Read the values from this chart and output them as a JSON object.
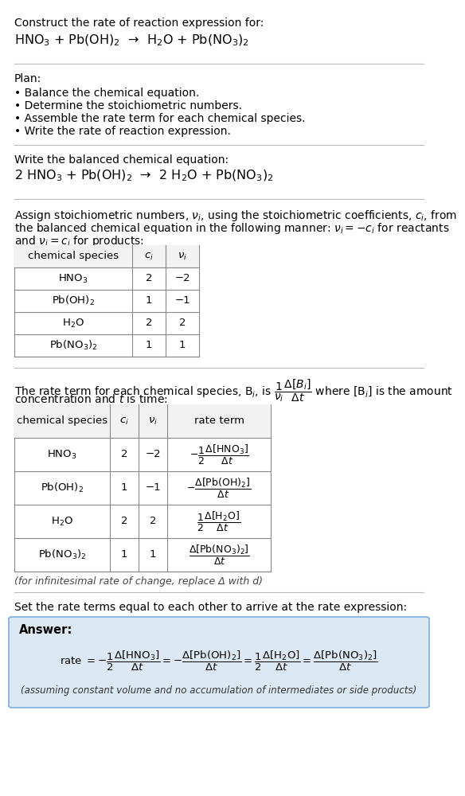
{
  "bg_color": "#ffffff",
  "text_color": "#000000",
  "answer_bg": "#dce9f5",
  "title_line1": "Construct the rate of reaction expression for:",
  "title_line2": "HNO$_3$ + Pb(OH)$_2$  →  H$_2$O + Pb(NO$_3$)$_2$",
  "plan_title": "Plan:",
  "plan_items": [
    "• Balance the chemical equation.",
    "• Determine the stoichiometric numbers.",
    "• Assemble the rate term for each chemical species.",
    "• Write the rate of reaction expression."
  ],
  "balanced_label": "Write the balanced chemical equation:",
  "balanced_eq": "2 HNO$_3$ + Pb(OH)$_2$  →  2 H$_2$O + Pb(NO$_3$)$_2$",
  "stoich_intro1": "Assign stoichiometric numbers, $\\nu_i$, using the stoichiometric coefficients, $c_i$, from",
  "stoich_intro2": "the balanced chemical equation in the following manner: $\\nu_i = -c_i$ for reactants",
  "stoich_intro3": "and $\\nu_i = c_i$ for products:",
  "table1_headers": [
    "chemical species",
    "$c_i$",
    "$\\nu_i$"
  ],
  "table1_data": [
    [
      "HNO$_3$",
      "2",
      "−2"
    ],
    [
      "Pb(OH)$_2$",
      "1",
      "−1"
    ],
    [
      "H$_2$O",
      "2",
      "2"
    ],
    [
      "Pb(NO$_3$)$_2$",
      "1",
      "1"
    ]
  ],
  "rate_intro1": "The rate term for each chemical species, B$_i$, is $\\dfrac{1}{\\nu_i}\\dfrac{\\Delta[B_i]}{\\Delta t}$ where [B$_i$] is the amount",
  "rate_intro2": "concentration and $t$ is time:",
  "table2_headers": [
    "chemical species",
    "$c_i$",
    "$\\nu_i$",
    "rate term"
  ],
  "table2_data": [
    [
      "HNO$_3$",
      "2",
      "−2",
      "$-\\dfrac{1}{2}\\dfrac{\\Delta[\\mathrm{HNO_3}]}{\\Delta t}$"
    ],
    [
      "Pb(OH)$_2$",
      "1",
      "−1",
      "$-\\dfrac{\\Delta[\\mathrm{Pb(OH)_2}]}{\\Delta t}$"
    ],
    [
      "H$_2$O",
      "2",
      "2",
      "$\\dfrac{1}{2}\\dfrac{\\Delta[\\mathrm{H_2O}]}{\\Delta t}$"
    ],
    [
      "Pb(NO$_3$)$_2$",
      "1",
      "1",
      "$\\dfrac{\\Delta[\\mathrm{Pb(NO_3)_2}]}{\\Delta t}$"
    ]
  ],
  "infinitesimal_note": "(for infinitesimal rate of change, replace Δ with d)",
  "set_equal_label": "Set the rate terms equal to each other to arrive at the rate expression:",
  "answer_label": "Answer:",
  "rate_expression": "rate $= -\\dfrac{1}{2}\\dfrac{\\Delta[\\mathrm{HNO_3}]}{\\Delta t} = -\\dfrac{\\Delta[\\mathrm{Pb(OH)_2}]}{\\Delta t} = \\dfrac{1}{2}\\dfrac{\\Delta[\\mathrm{H_2O}]}{\\Delta t} = \\dfrac{\\Delta[\\mathrm{Pb(NO_3)_2}]}{\\Delta t}$",
  "assumption_note": "(assuming constant volume and no accumulation of intermediates or side products)"
}
